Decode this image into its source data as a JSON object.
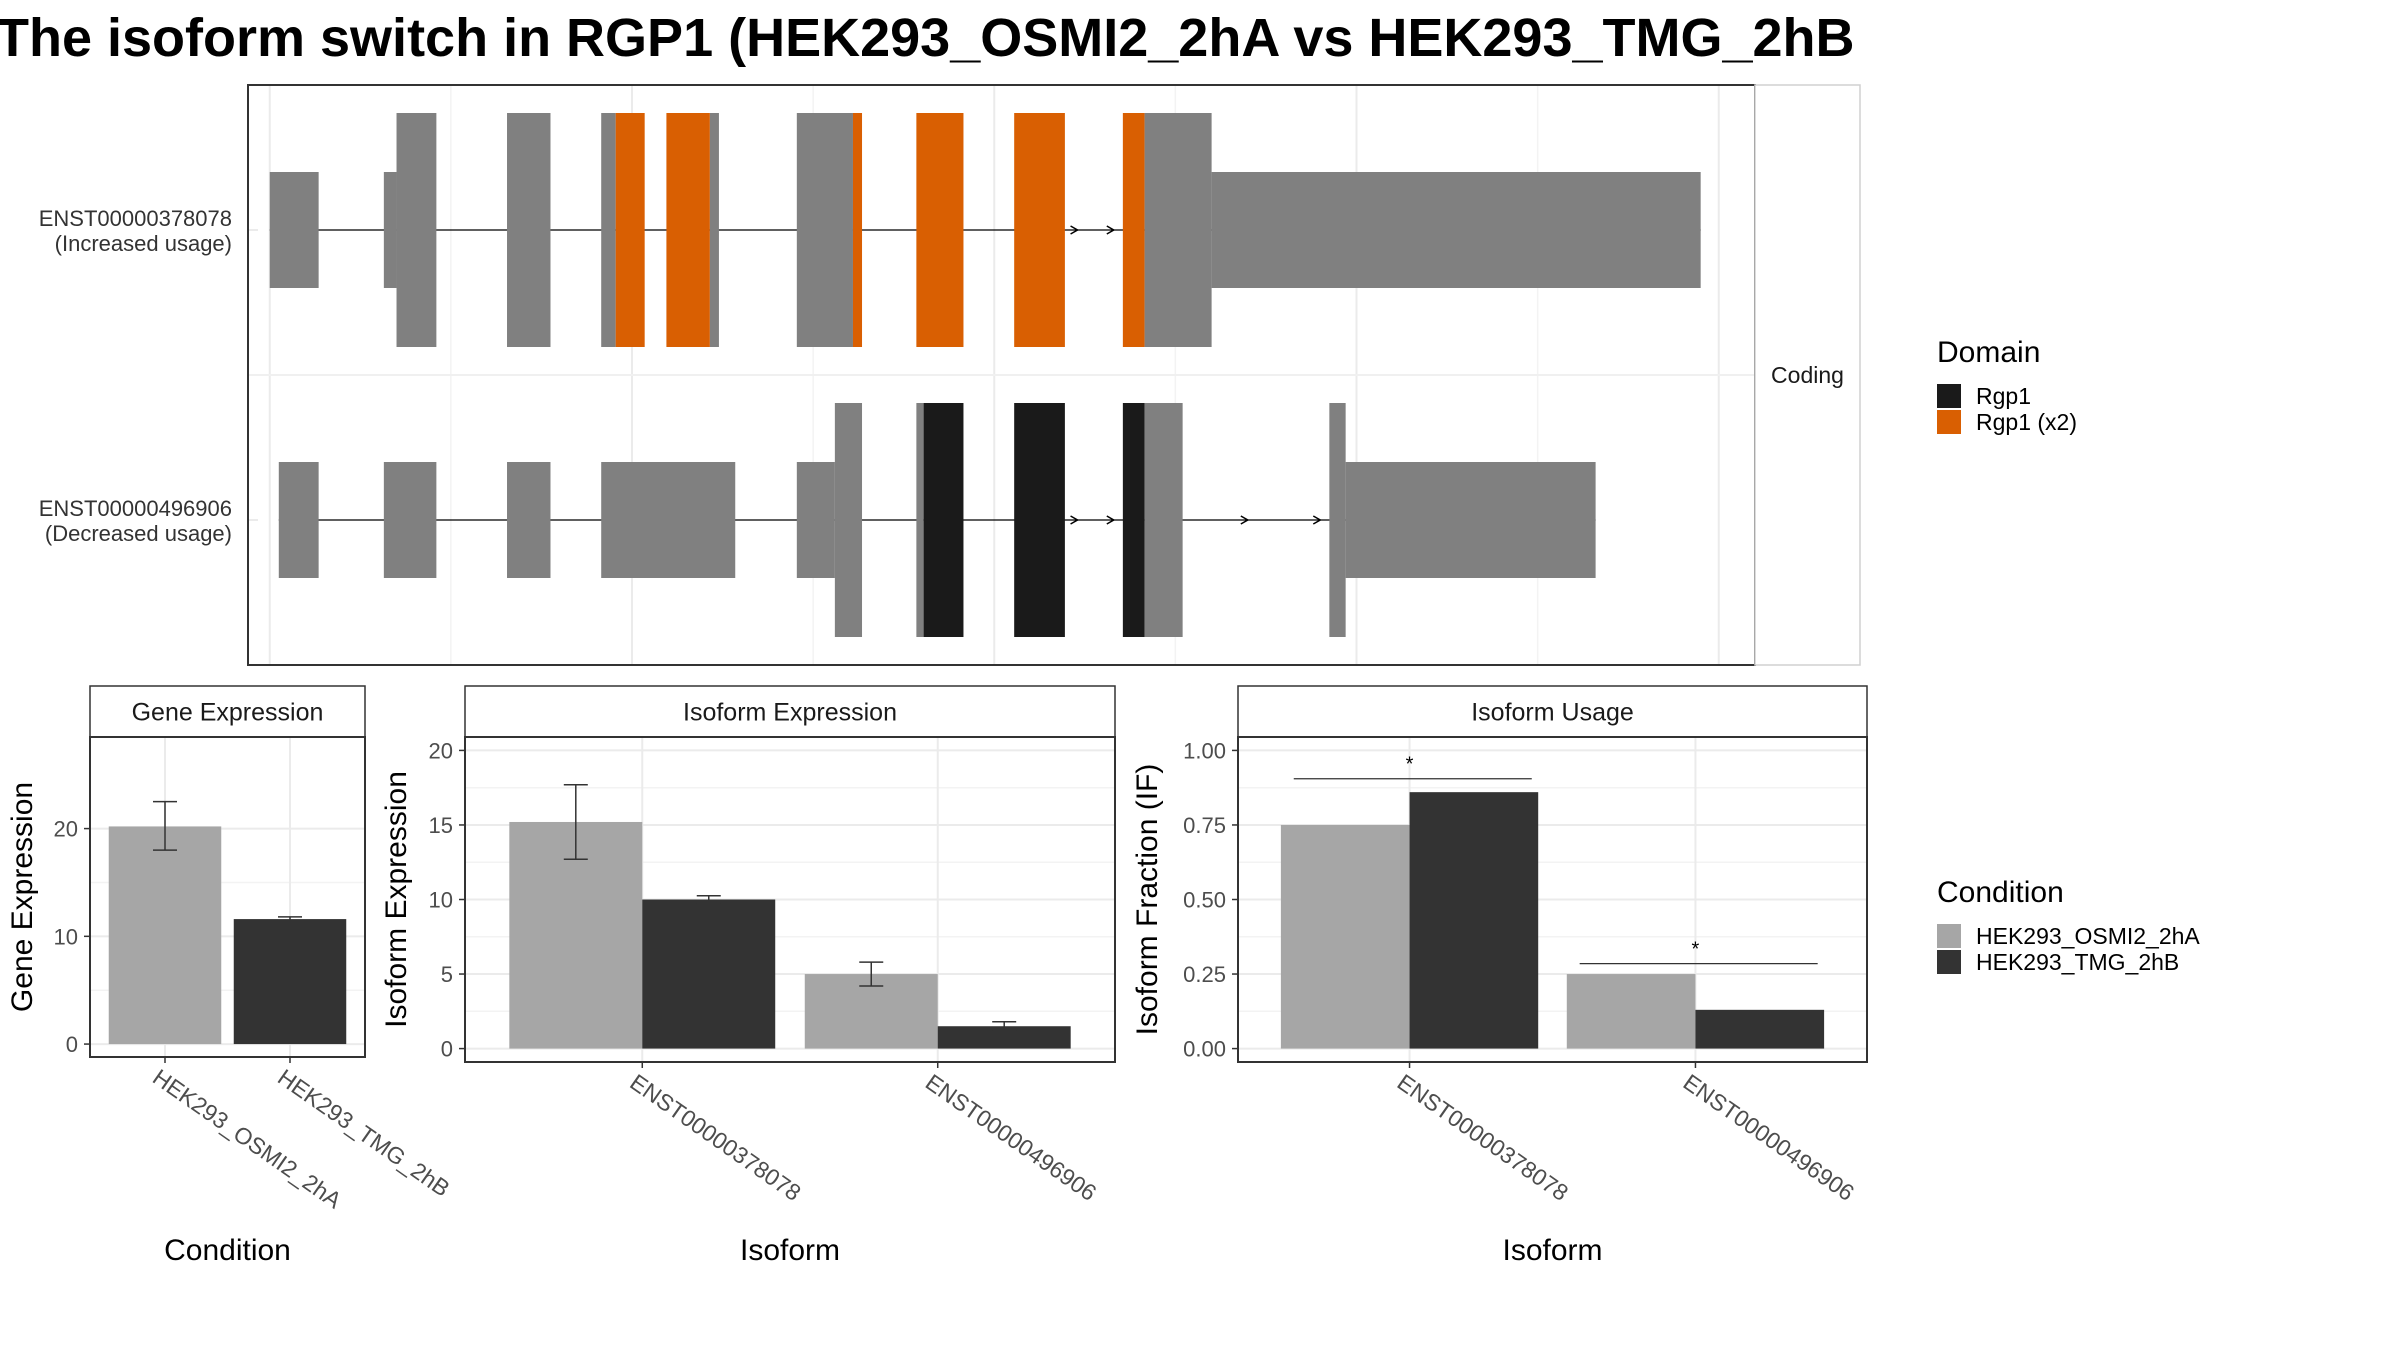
{
  "title": "The isoform switch in RGP1 (HEK293_OSMI2_2hA vs HEK293_TMG_2hB",
  "colors": {
    "exon": "#808080",
    "domain_rgp1": "#1a1a1a",
    "domain_rgp1_x2": "#d95f02",
    "cond_a": "#a6a6a6",
    "cond_b": "#333333",
    "grid": "#ebebeb",
    "strip_bg": "#ffffff",
    "panel_border": "#333333"
  },
  "chart_data": [
    {
      "type": "gene-structure",
      "strip_label": "Coding",
      "isoforms": [
        {
          "id": "ENST00000378078",
          "label_line1": "ENST00000378078",
          "label_line2": "(Increased usage)",
          "exons": [
            {
              "s": 1000,
              "e": 1135,
              "kind": "utr"
            },
            {
              "s": 1315,
              "e": 1350,
              "kind": "utr"
            },
            {
              "s": 1350,
              "e": 1460,
              "kind": "cds"
            },
            {
              "s": 1655,
              "e": 1775,
              "kind": "cds"
            },
            {
              "s": 1915,
              "e": 1955,
              "kind": "cds"
            },
            {
              "s": 1955,
              "e": 2035,
              "kind": "cds",
              "domain": "Rgp1 (x2)"
            },
            {
              "s": 2095,
              "e": 2215,
              "kind": "cds",
              "domain": "Rgp1 (x2)"
            },
            {
              "s": 2215,
              "e": 2240,
              "kind": "cds"
            },
            {
              "s": 2455,
              "e": 2610,
              "kind": "cds"
            },
            {
              "s": 2610,
              "e": 2635,
              "kind": "cds",
              "domain": "Rgp1 (x2)"
            },
            {
              "s": 2785,
              "e": 2915,
              "kind": "cds",
              "domain": "Rgp1 (x2)"
            },
            {
              "s": 3055,
              "e": 3195,
              "kind": "cds",
              "domain": "Rgp1 (x2)"
            },
            {
              "s": 3355,
              "e": 3415,
              "kind": "cds",
              "domain": "Rgp1 (x2)"
            },
            {
              "s": 3415,
              "e": 3600,
              "kind": "cds"
            },
            {
              "s": 3600,
              "e": 4950,
              "kind": "utr"
            }
          ],
          "arrows": [
            3230,
            3330
          ]
        },
        {
          "id": "ENST00000496906",
          "label_line1": "ENST00000496906",
          "label_line2": "(Decreased usage)",
          "exons": [
            {
              "s": 1025,
              "e": 1135,
              "kind": "utr"
            },
            {
              "s": 1315,
              "e": 1460,
              "kind": "utr"
            },
            {
              "s": 1655,
              "e": 1775,
              "kind": "utr"
            },
            {
              "s": 1915,
              "e": 2285,
              "kind": "utr"
            },
            {
              "s": 2455,
              "e": 2560,
              "kind": "utr"
            },
            {
              "s": 2560,
              "e": 2635,
              "kind": "cds"
            },
            {
              "s": 2785,
              "e": 2805,
              "kind": "cds"
            },
            {
              "s": 2805,
              "e": 2915,
              "kind": "cds",
              "domain": "Rgp1"
            },
            {
              "s": 3055,
              "e": 3195,
              "kind": "cds",
              "domain": "Rgp1"
            },
            {
              "s": 3355,
              "e": 3415,
              "kind": "cds",
              "domain": "Rgp1"
            },
            {
              "s": 3415,
              "e": 3520,
              "kind": "cds"
            },
            {
              "s": 3925,
              "e": 3970,
              "kind": "cds"
            },
            {
              "s": 3970,
              "e": 4660,
              "kind": "utr"
            }
          ],
          "arrows": [
            3230,
            3330,
            3700,
            3900
          ]
        }
      ],
      "domain_legend_title": "Domain",
      "domains": [
        "Rgp1",
        "Rgp1 (x2)"
      ]
    },
    {
      "type": "bar",
      "strip_label": "Gene Expression",
      "xlabel": "Condition",
      "ylabel": "Gene Expression",
      "categories": [
        "HEK293_OSMI2_2hA",
        "HEK293_TMG_2hB"
      ],
      "values": [
        20.2,
        11.6
      ],
      "errors": [
        [
          18.0,
          22.5
        ],
        [
          11.4,
          11.8
        ]
      ],
      "ylim": [
        -1.2,
        28.5
      ],
      "yticks": [
        0,
        10,
        20
      ]
    },
    {
      "type": "bar",
      "strip_label": "Isoform Expression",
      "xlabel": "Isoform",
      "ylabel": "Isoform Expression",
      "categories": [
        "ENST00000378078",
        "ENST00000496906"
      ],
      "series": [
        {
          "condition": "HEK293_OSMI2_2hA",
          "values": [
            15.2,
            5.0
          ],
          "errors": [
            [
              12.7,
              17.7
            ],
            [
              4.2,
              5.8
            ]
          ]
        },
        {
          "condition": "HEK293_TMG_2hB",
          "values": [
            10.0,
            1.5
          ],
          "errors": [
            [
              9.75,
              10.25
            ],
            [
              1.2,
              1.8
            ]
          ]
        }
      ],
      "ylim": [
        -0.9,
        20.9
      ],
      "yticks": [
        0,
        5,
        10,
        15,
        20
      ]
    },
    {
      "type": "bar",
      "strip_label": "Isoform Usage",
      "xlabel": "Isoform",
      "ylabel": "Isoform Fraction (IF)",
      "categories": [
        "ENST00000378078",
        "ENST00000496906"
      ],
      "series": [
        {
          "condition": "HEK293_OSMI2_2hA",
          "values": [
            0.75,
            0.25
          ]
        },
        {
          "condition": "HEK293_TMG_2hB",
          "values": [
            0.86,
            0.13
          ]
        }
      ],
      "significance": [
        {
          "label": "*",
          "y": 0.905
        },
        {
          "label": "*",
          "y": 0.285
        }
      ],
      "ylim": [
        -0.045,
        1.045
      ],
      "yticks": [
        0.0,
        0.25,
        0.5,
        0.75,
        1.0
      ],
      "ytick_labels": [
        "0.00",
        "0.25",
        "0.50",
        "0.75",
        "1.00"
      ]
    }
  ],
  "condition_legend_title": "Condition",
  "conditions": [
    "HEK293_OSMI2_2hA",
    "HEK293_TMG_2hB"
  ]
}
